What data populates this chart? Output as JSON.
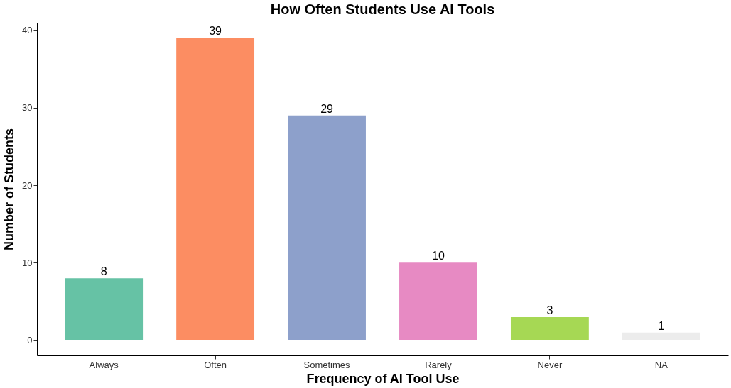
{
  "chart_data": {
    "type": "bar",
    "title": "How Often Students Use AI Tools",
    "xlabel": "Frequency of AI Tool Use",
    "ylabel": "Number of Students",
    "categories": [
      "Always",
      "Often",
      "Sometimes",
      "Rarely",
      "Never",
      "NA"
    ],
    "values": [
      8,
      39,
      29,
      10,
      3,
      1
    ],
    "colors": [
      "#66c2a5",
      "#fc8d62",
      "#8da0cb",
      "#e78ac3",
      "#a6d854",
      "#ececec"
    ],
    "ylim": [
      -1.95,
      40.95
    ],
    "yticks": [
      0,
      10,
      20,
      30,
      40
    ],
    "grid": false,
    "data_labels": true
  }
}
